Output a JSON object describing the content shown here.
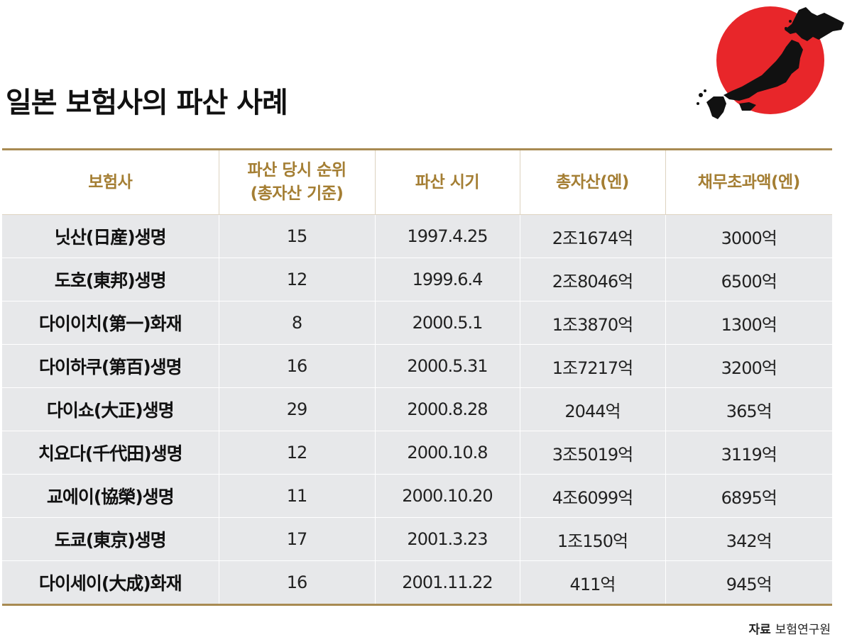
{
  "title": "일본 보험사의 파산 사례",
  "colors": {
    "header_text": "#a47e33",
    "rule": "#a88a52",
    "row_bg": "#e7e8ea",
    "sun": "#e8262a",
    "map": "#111111"
  },
  "table": {
    "headers": [
      "보험사",
      "파산 당시 순위\n(총자산 기준)",
      "파산 시기",
      "총자산(엔)",
      "채무초과액(엔)"
    ],
    "rows": [
      [
        "닛산(日産)생명",
        "15",
        "1997.4.25",
        "2조1674억",
        "3000억"
      ],
      [
        "도호(東邦)생명",
        "12",
        "1999.6.4",
        "2조8046억",
        "6500억"
      ],
      [
        "다이이치(第一)화재",
        "8",
        "2000.5.1",
        "1조3870억",
        "1300억"
      ],
      [
        "다이하쿠(第百)생명",
        "16",
        "2000.5.31",
        "1조7217억",
        "3200억"
      ],
      [
        "다이쇼(大正)생명",
        "29",
        "2000.8.28",
        "2044억",
        "365억"
      ],
      [
        "치요다(千代田)생명",
        "12",
        "2000.10.8",
        "3조5019억",
        "3119억"
      ],
      [
        "교에이(協榮)생명",
        "11",
        "2000.10.20",
        "4조6099억",
        "6895억"
      ],
      [
        "도쿄(東京)생명",
        "17",
        "2001.3.23",
        "1조150억",
        "342억"
      ],
      [
        "다이세이(大成)화재",
        "16",
        "2001.11.22",
        "411억",
        "945억"
      ]
    ]
  },
  "source": {
    "label": "자료",
    "text": "보험연구원"
  },
  "icons": {
    "graphic": "japan-map-with-sun-icon"
  }
}
